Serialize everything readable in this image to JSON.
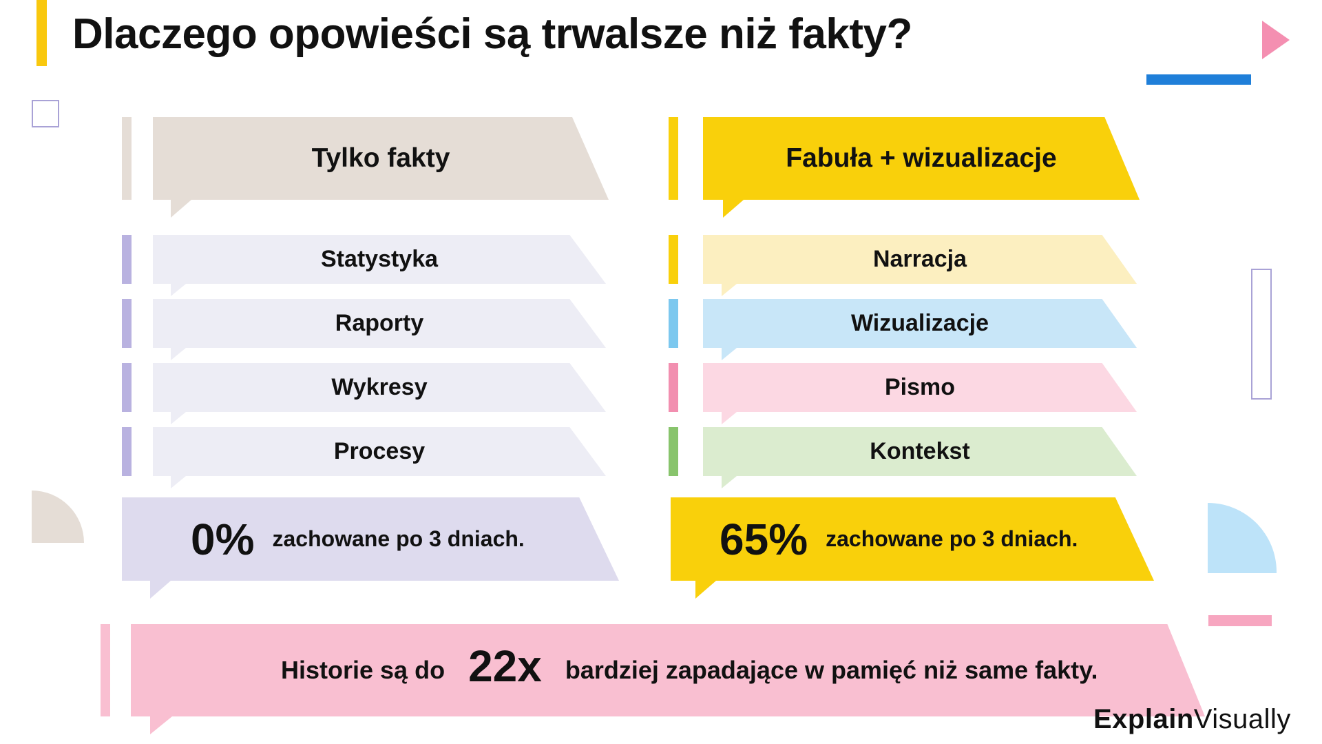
{
  "title": "Dlaczego opowieści są trwalsze niż fakty?",
  "left": {
    "header": "Tylko fakty",
    "items": [
      "Statystyka",
      "Raporty",
      "Wykresy",
      "Procesy"
    ],
    "percent": "0%",
    "retained": "zachowane po 3 dniach."
  },
  "right": {
    "header": "Fabuła + wizualizacje",
    "items": [
      "Narracja",
      "Wizualizacje",
      "Pismo",
      "Kontekst"
    ],
    "percent": "65%",
    "retained": "zachowane po 3 dniach."
  },
  "bottom": {
    "prefix": "Historie są do",
    "multiplier": "22x",
    "suffix": "bardziej zapadające w pamięć niż same fakty."
  },
  "brand": {
    "part1": "Explain",
    "part2": "Visually"
  },
  "colors": {
    "beige": "#e5ddd6",
    "lavender_light": "#ededf5",
    "lavender_stripe": "#b9b2e0",
    "lavender_box": "#dedbee",
    "yellow": "#f9d00b",
    "yellow_light": "#fcefc0",
    "blue_light": "#c8e6f8",
    "blue_stripe": "#7cc8ef",
    "pink_light": "#fcd8e3",
    "pink_stripe": "#f28fb0",
    "green_light": "#dbeccf",
    "green_stripe": "#88c46c",
    "pink_bottom": "#f9bfd1"
  }
}
